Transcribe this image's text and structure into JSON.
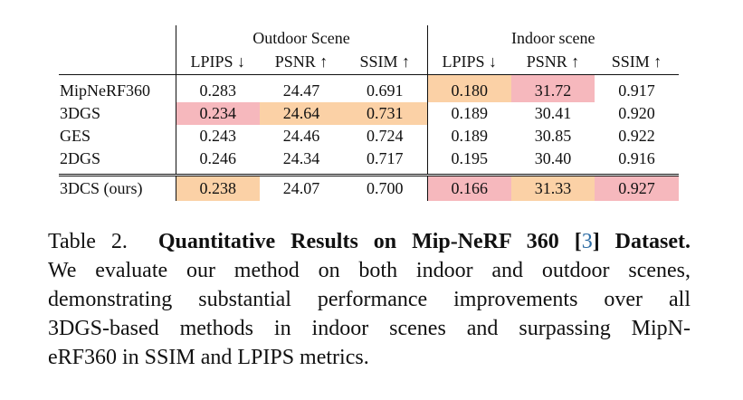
{
  "table": {
    "groups": [
      "Outdoor Scene",
      "Indoor scene"
    ],
    "metrics": [
      "LPIPS ↓",
      "PSNR ↑",
      "SSIM ↑",
      "LPIPS ↓",
      "PSNR ↑",
      "SSIM ↑"
    ],
    "rows": [
      {
        "method": "MipNeRF360",
        "values": [
          "0.283",
          "24.47",
          "0.691",
          "0.180",
          "31.72",
          "0.917"
        ]
      },
      {
        "method": "3DGS",
        "values": [
          "0.234",
          "24.64",
          "0.731",
          "0.189",
          "30.41",
          "0.920"
        ]
      },
      {
        "method": "GES",
        "values": [
          "0.243",
          "24.46",
          "0.724",
          "0.189",
          "30.85",
          "0.922"
        ]
      },
      {
        "method": "2DGS",
        "values": [
          "0.246",
          "24.34",
          "0.717",
          "0.195",
          "30.40",
          "0.916"
        ]
      },
      {
        "method": "3DCS (ours)",
        "values": [
          "0.238",
          "24.07",
          "0.700",
          "0.166",
          "31.33",
          "0.927"
        ]
      }
    ],
    "highlight_colors": {
      "best": "#f6b8bd",
      "second": "#fbd1a6"
    }
  },
  "caption": {
    "label": "Table 2.",
    "title_pre": "Quantitative Results on Mip-NeRF 360 [",
    "cite": "3",
    "title_post": "] Dataset.",
    "line1": "We evaluate our method on both indoor and outdoor scenes,",
    "line2": "demonstrating substantial performance improvements over all",
    "line3": "3DGS-based methods in indoor scenes and surpassing MipN-",
    "line4": "eRF360 in SSIM and LPIPS metrics."
  }
}
